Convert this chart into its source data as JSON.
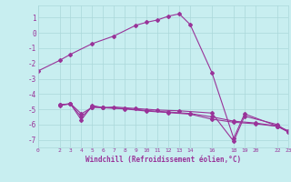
{
  "bg_color": "#c8eef0",
  "grid_color": "#aad8da",
  "line_color": "#993399",
  "xlabel": "Windchill (Refroidissement éolien,°C)",
  "xlabel_color": "#993399",
  "ylim": [
    -7.5,
    1.8
  ],
  "xlim": [
    0,
    23
  ],
  "yticks": [
    1,
    0,
    -1,
    -2,
    -3,
    -4,
    -5,
    -6,
    -7
  ],
  "xtick_positions": [
    0,
    2,
    3,
    4,
    5,
    6,
    7,
    8,
    9,
    10,
    11,
    12,
    13,
    14,
    16,
    18,
    19,
    20,
    22,
    23
  ],
  "xtick_labels": [
    "0",
    "2",
    "3",
    "4",
    "5",
    "6",
    "7",
    "8",
    "9",
    "10",
    "11",
    "12",
    "13",
    "14",
    "16",
    "18",
    "19",
    "20",
    "22",
    "23"
  ],
  "series1_x": [
    0,
    2,
    3,
    5,
    7,
    9,
    10,
    11,
    12,
    13,
    14,
    16,
    18,
    19,
    22,
    23
  ],
  "series1_y": [
    -2.5,
    -1.8,
    -1.4,
    -0.7,
    -0.2,
    0.5,
    0.7,
    0.85,
    1.1,
    1.25,
    0.55,
    -2.6,
    -6.9,
    -5.3,
    -6.1,
    -6.4
  ],
  "series2_x": [
    2,
    3,
    4,
    5,
    6,
    7,
    9,
    11,
    13,
    16,
    18,
    19,
    22,
    23
  ],
  "series2_y": [
    -4.7,
    -4.65,
    -5.7,
    -4.75,
    -4.9,
    -4.85,
    -4.95,
    -5.05,
    -5.1,
    -5.25,
    -7.1,
    -5.45,
    -6.0,
    -6.5
  ],
  "series3_x": [
    2,
    3,
    4,
    5,
    6,
    8,
    10,
    12,
    14,
    16,
    18,
    20,
    22,
    23
  ],
  "series3_y": [
    -4.75,
    -4.65,
    -5.5,
    -4.85,
    -4.88,
    -4.95,
    -5.08,
    -5.18,
    -5.28,
    -5.5,
    -5.78,
    -5.9,
    -6.1,
    -6.45
  ],
  "series4_x": [
    2,
    3,
    4,
    5,
    6,
    8,
    10,
    12,
    14,
    16,
    18,
    20,
    22,
    23
  ],
  "series4_y": [
    -4.72,
    -4.63,
    -5.3,
    -4.87,
    -4.9,
    -4.98,
    -5.12,
    -5.22,
    -5.32,
    -5.65,
    -5.85,
    -5.95,
    -6.12,
    -6.48
  ]
}
